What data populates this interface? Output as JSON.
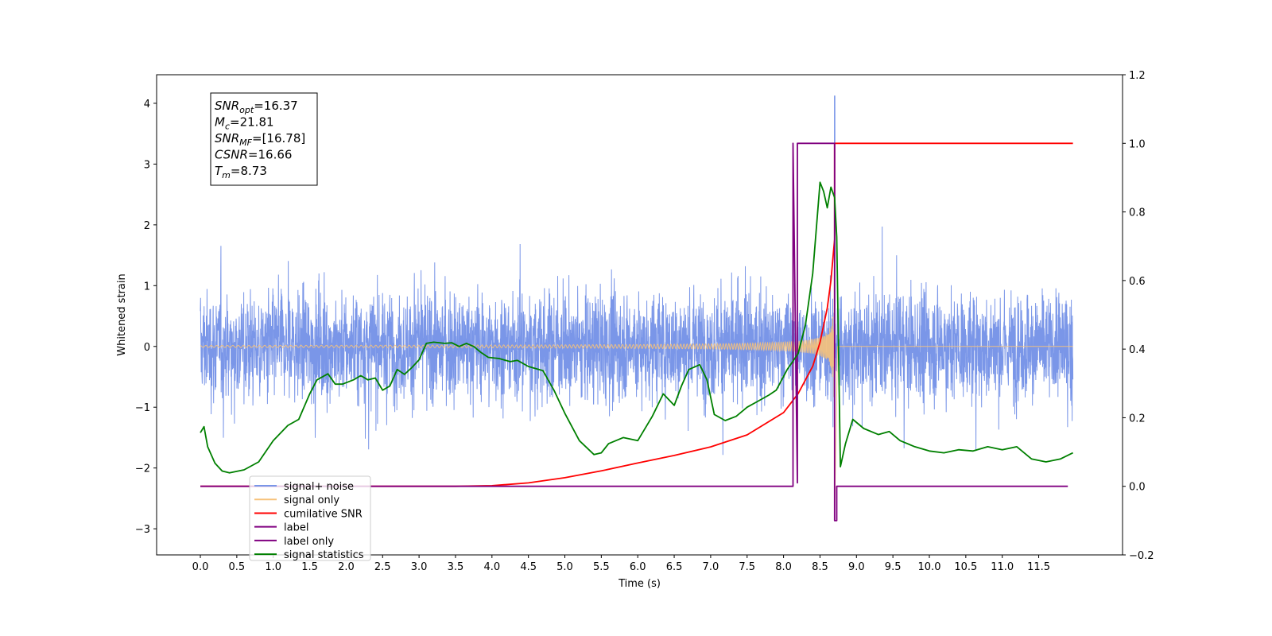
{
  "chart_data": {
    "type": "line",
    "xlabel": "Time (s)",
    "ylabel": "Whitened strain",
    "xlim": [
      -0.6,
      12.65
    ],
    "ylim": [
      -3.43,
      4.47
    ],
    "y2lim": [
      -0.2,
      1.2
    ],
    "xticks": [
      "0.0",
      "0.5",
      "1.0",
      "1.5",
      "2.0",
      "2.5",
      "3.0",
      "3.5",
      "4.0",
      "4.5",
      "5.0",
      "5.5",
      "6.0",
      "6.5",
      "7.0",
      "7.5",
      "8.0",
      "8.5",
      "9.0",
      "9.5",
      "10.0",
      "10.5",
      "11.0",
      "11.5"
    ],
    "yticks": [
      "4",
      "3",
      "2",
      "1",
      "0",
      "−1",
      "−2",
      "−3"
    ],
    "y2ticks": [
      "1.2",
      "1.0",
      "0.8",
      "0.6",
      "0.4",
      "0.2",
      "0.0",
      "−0.2"
    ],
    "annotation": [
      {
        "base": "SNR",
        "sub": "opt",
        "value": "=16.37"
      },
      {
        "base": "M",
        "sub": "c",
        "value": "=21.81"
      },
      {
        "base": "SNR",
        "sub": "MF",
        "value": "=[16.78]"
      },
      {
        "base": "CSNR",
        "sub": "",
        "value": "=16.66"
      },
      {
        "base": "T",
        "sub": "m",
        "value": "=8.73"
      }
    ],
    "legend_position": "lower-left",
    "colors": {
      "signal_noise": "#7a96e8",
      "signal_only": "#f7c27a",
      "cumulative_snr": "#ff0000",
      "label": "#800080",
      "label_only": "#800080",
      "signal_statistics": "#008000"
    },
    "series": [
      {
        "name": "signal+ noise",
        "key": "signal_noise",
        "axis": "left",
        "style": "noise-band",
        "t_start": 0.0,
        "t_end": 11.97,
        "typical_envelope": 1.3,
        "peak_value": 4.12,
        "peak_time": 8.7,
        "min_value": -3.08
      },
      {
        "name": "signal only",
        "key": "signal_only",
        "axis": "left",
        "style": "chirp",
        "t_start": 0.0,
        "t_end": 11.97,
        "merger_time": 8.7,
        "peak_amplitude": 2.9
      },
      {
        "name": "cumilative SNR",
        "key": "cumulative_snr",
        "axis": "right",
        "x": [
          0.0,
          3.5,
          4.0,
          4.5,
          5.0,
          5.5,
          6.0,
          6.5,
          7.0,
          7.5,
          8.0,
          8.2,
          8.4,
          8.5,
          8.6,
          8.65,
          8.7,
          8.7,
          11.97
        ],
        "values": [
          0.0,
          0.0,
          0.002,
          0.01,
          0.025,
          0.045,
          0.068,
          0.09,
          0.115,
          0.15,
          0.215,
          0.27,
          0.35,
          0.42,
          0.52,
          0.6,
          0.72,
          1.0,
          1.0
        ]
      },
      {
        "name": "label",
        "key": "label",
        "axis": "right",
        "x": [
          0.0,
          8.13,
          8.13,
          8.19,
          8.19,
          8.7,
          8.7,
          8.73,
          8.73,
          11.9
        ],
        "values": [
          0.0,
          0.0,
          1.0,
          0.01,
          1.0,
          1.0,
          -0.1,
          -0.1,
          0.0,
          0.0
        ]
      },
      {
        "name": "label only",
        "key": "label_only",
        "axis": "right",
        "x": [],
        "values": []
      },
      {
        "name": "signal statistics",
        "key": "signal_statistics",
        "axis": "left",
        "x": [
          0.0,
          0.05,
          0.1,
          0.2,
          0.3,
          0.4,
          0.6,
          0.8,
          1.0,
          1.2,
          1.35,
          1.5,
          1.6,
          1.75,
          1.85,
          1.95,
          2.1,
          2.2,
          2.3,
          2.4,
          2.5,
          2.6,
          2.7,
          2.8,
          2.9,
          3.0,
          3.1,
          3.2,
          3.35,
          3.45,
          3.55,
          3.65,
          3.75,
          3.85,
          3.95,
          4.1,
          4.25,
          4.35,
          4.5,
          4.7,
          4.85,
          5.0,
          5.2,
          5.4,
          5.5,
          5.6,
          5.8,
          6.0,
          6.2,
          6.35,
          6.5,
          6.6,
          6.7,
          6.85,
          6.95,
          7.05,
          7.2,
          7.35,
          7.5,
          7.65,
          7.8,
          7.9,
          8.05,
          8.2,
          8.3,
          8.4,
          8.5,
          8.55,
          8.6,
          8.65,
          8.7,
          8.73,
          8.78,
          8.85,
          8.95,
          9.1,
          9.3,
          9.45,
          9.6,
          9.8,
          10.0,
          10.2,
          10.4,
          10.6,
          10.8,
          11.0,
          11.2,
          11.4,
          11.6,
          11.8,
          11.97
        ],
        "values": [
          -1.42,
          -1.32,
          -1.65,
          -1.92,
          -2.05,
          -2.08,
          -2.03,
          -1.9,
          -1.55,
          -1.3,
          -1.2,
          -0.78,
          -0.55,
          -0.45,
          -0.62,
          -0.62,
          -0.55,
          -0.48,
          -0.55,
          -0.52,
          -0.72,
          -0.65,
          -0.38,
          -0.46,
          -0.35,
          -0.22,
          0.05,
          0.07,
          0.05,
          0.06,
          0.0,
          0.05,
          0.0,
          -0.1,
          -0.18,
          -0.2,
          -0.25,
          -0.23,
          -0.33,
          -0.4,
          -0.72,
          -1.1,
          -1.55,
          -1.78,
          -1.75,
          -1.6,
          -1.5,
          -1.55,
          -1.15,
          -0.78,
          -0.97,
          -0.65,
          -0.38,
          -0.3,
          -0.55,
          -1.12,
          -1.22,
          -1.15,
          -1.0,
          -0.9,
          -0.8,
          -0.72,
          -0.38,
          -0.12,
          0.35,
          1.2,
          2.7,
          2.55,
          2.28,
          2.62,
          2.45,
          1.8,
          -1.98,
          -1.6,
          -1.2,
          -1.35,
          -1.45,
          -1.4,
          -1.55,
          -1.65,
          -1.72,
          -1.75,
          -1.7,
          -1.72,
          -1.65,
          -1.7,
          -1.65,
          -1.85,
          -1.9,
          -1.85,
          -1.75
        ]
      }
    ]
  }
}
